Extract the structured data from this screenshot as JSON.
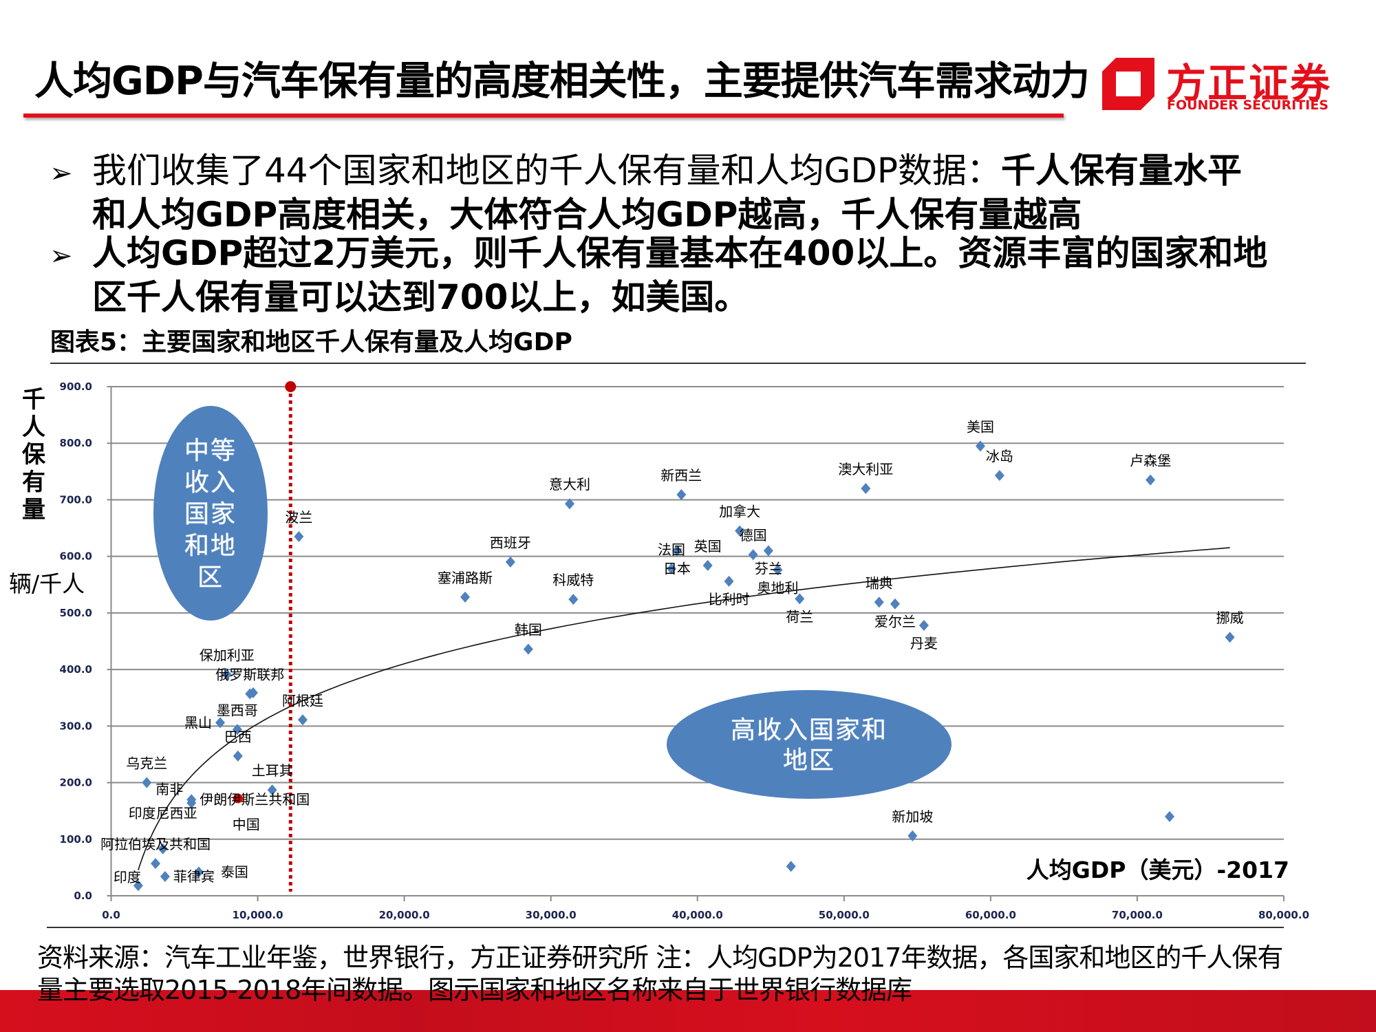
{
  "header": {
    "title": "人均GDP与汽车保有量的高度相关性，主要提供汽车需求动力",
    "logo_cn": "方正证券",
    "logo_en": "FOUNDER SECURITIES",
    "brand_color": "#E3101B"
  },
  "bullets": [
    {
      "icon": "arrow-bullet-icon",
      "glyph": "➢",
      "line1_regular": "我们收集了44个国家和地区的千人保有量和人均GDP数据：",
      "line1_bold": "千人保有量水平",
      "line2_bold": "和人均GDP高度相关，大体符合人均GDP越高，千人保有量越高"
    },
    {
      "icon": "arrow-bullet-icon",
      "glyph": "➢",
      "line1_bold": "人均GDP超过2万美元，则千人保有量基本在400以上。资源丰富的国家和地",
      "line2_bold": "区千人保有量可以达到700以上，如美国。"
    }
  ],
  "caption": "图表5：主要国家和地区千人保有量及人均GDP",
  "chart_data": {
    "type": "scatter",
    "xlabel": "人均GDP（美元）-2017",
    "ylabel": "千人保有量",
    "yunit": "辆/千人",
    "xlim": [
      0,
      80000
    ],
    "ylim": [
      0,
      900
    ],
    "x_tick_labels": [
      "0.0",
      "10,000.0",
      "20,000.0",
      "30,000.0",
      "40,000.0",
      "50,000.0",
      "60,000.0",
      "70,000.0",
      "80,000.0"
    ],
    "y_tick_labels": [
      "0.0",
      "100.0",
      "200.0",
      "300.0",
      "400.0",
      "500.0",
      "600.0",
      "700.0",
      "800.0",
      "900.0"
    ],
    "grid": "horizontal",
    "marker_color": "#4F81BD",
    "highlight_color": "#E00000",
    "trendline": "logarithmic",
    "threshold_line": {
      "x": 12240,
      "color": "#C00000",
      "style": "dotted"
    },
    "regions": [
      {
        "lines": [
          "中等",
          "收入",
          "国家",
          "和地",
          "区"
        ],
        "color": "#4F81BD"
      },
      {
        "lines": [
          "高收入国家和",
          "地区"
        ],
        "color": "#4F81BD"
      }
    ],
    "points": [
      {
        "label": "印度",
        "x": 1850,
        "y": 18
      },
      {
        "label": "阿拉伯埃及共和国",
        "x": 3030,
        "y": 57
      },
      {
        "label": "菲律宾",
        "x": 3680,
        "y": 34
      },
      {
        "label": "印度尼西亚",
        "x": 3530,
        "y": 83
      },
      {
        "label": "泰国",
        "x": 5980,
        "y": 42
      },
      {
        "label": "乌克兰",
        "x": 2430,
        "y": 200
      },
      {
        "label": "伊朗伊斯兰共和国",
        "x": 5480,
        "y": 170
      },
      {
        "label": "南非",
        "x": 5480,
        "y": 164
      },
      {
        "label": "中国",
        "x": 8650,
        "y": 172,
        "highlight": true
      },
      {
        "label": "巴西",
        "x": 8650,
        "y": 247
      },
      {
        "label": "墨西哥",
        "x": 8610,
        "y": 294
      },
      {
        "label": "黑山",
        "x": 7440,
        "y": 306
      },
      {
        "label": "保加利亚",
        "x": 7900,
        "y": 391
      },
      {
        "label": "俄罗斯联邦",
        "x": 9470,
        "y": 357
      },
      {
        "label": "",
        "x": 9690,
        "y": 359
      },
      {
        "label": "土耳其",
        "x": 10990,
        "y": 187
      },
      {
        "label": "阿根廷",
        "x": 13070,
        "y": 311
      },
      {
        "label": "波兰",
        "x": 12810,
        "y": 635
      },
      {
        "label": "塞浦路斯",
        "x": 24150,
        "y": 528
      },
      {
        "label": "西班牙",
        "x": 27240,
        "y": 590
      },
      {
        "label": "韩国",
        "x": 28460,
        "y": 436
      },
      {
        "label": "意大利",
        "x": 31280,
        "y": 693
      },
      {
        "label": "科威特",
        "x": 31530,
        "y": 524
      },
      {
        "label": "法国",
        "x": 38230,
        "y": 578
      },
      {
        "label": "日本",
        "x": 38600,
        "y": 610
      },
      {
        "label": "新西兰",
        "x": 38900,
        "y": 709
      },
      {
        "label": "英国",
        "x": 40700,
        "y": 584
      },
      {
        "label": "比利时",
        "x": 42150,
        "y": 556
      },
      {
        "label": "加拿大",
        "x": 42880,
        "y": 645
      },
      {
        "label": "德国",
        "x": 43800,
        "y": 603
      },
      {
        "label": "芬兰",
        "x": 44840,
        "y": 610
      },
      {
        "label": "奥地利",
        "x": 45480,
        "y": 576
      },
      {
        "label": "荷兰",
        "x": 46970,
        "y": 525
      },
      {
        "label": "",
        "x": 46380,
        "y": 52
      },
      {
        "label": "澳大利亚",
        "x": 51480,
        "y": 720
      },
      {
        "label": "瑞典",
        "x": 52390,
        "y": 519
      },
      {
        "label": "爱尔兰",
        "x": 53480,
        "y": 516
      },
      {
        "label": "新加坡",
        "x": 54670,
        "y": 106
      },
      {
        "label": "丹麦",
        "x": 55450,
        "y": 478
      },
      {
        "label": "美国",
        "x": 59300,
        "y": 795
      },
      {
        "label": "冰岛",
        "x": 60610,
        "y": 743
      },
      {
        "label": "卢森堡",
        "x": 70900,
        "y": 735
      },
      {
        "label": "",
        "x": 72210,
        "y": 140
      },
      {
        "label": "挪威",
        "x": 76320,
        "y": 457
      }
    ]
  },
  "footer": {
    "line1": "资料来源：汽车工业年鉴，世界银行，方正证券研究所   注：人均GDP为2017年数据，各国家和地区的千人保有",
    "line2": "量主要选取2015-2018年间数据。图示国家和地区名称来自于世界银行数据库"
  }
}
